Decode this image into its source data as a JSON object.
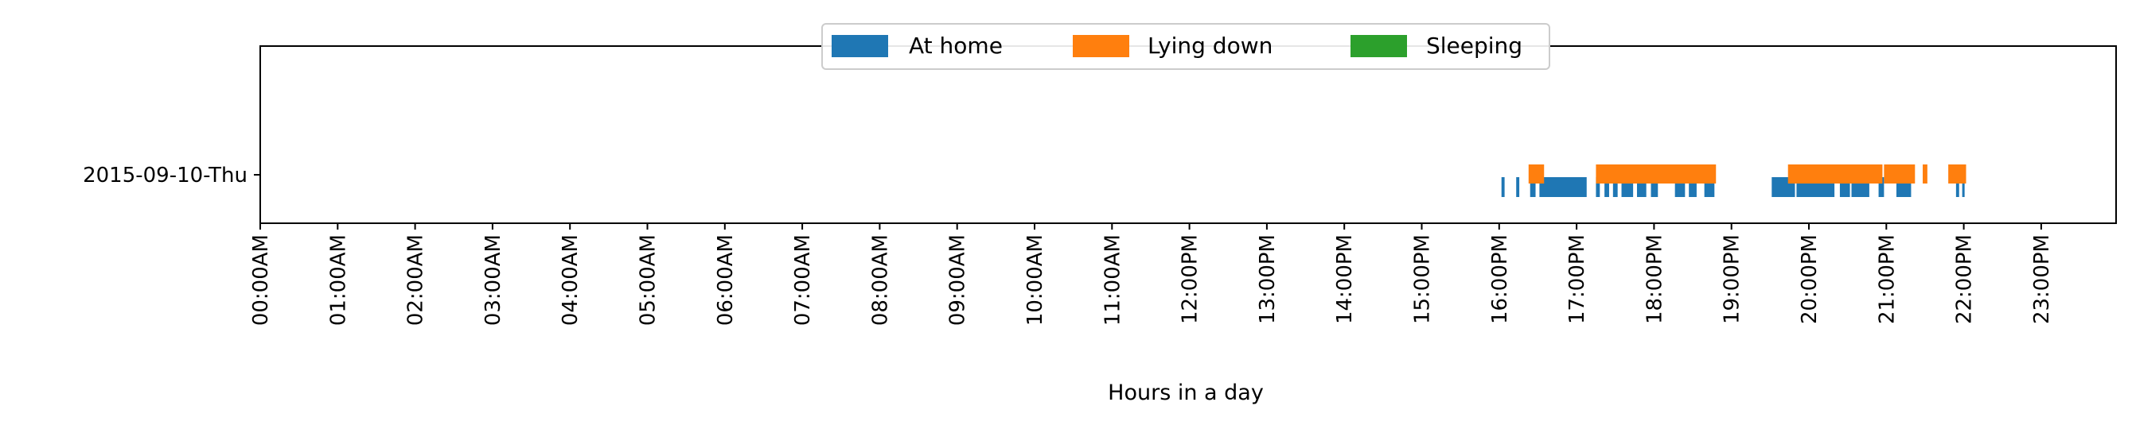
{
  "chart_data": {
    "type": "timeline",
    "title": "",
    "xlabel": "Hours in a day",
    "ylabel": "",
    "xlim_hours": [
      0,
      24
    ],
    "grid": false,
    "legend_placement": "top-center",
    "row_label": "2015-09-10-Thu",
    "x_tick_labels": [
      "00:00AM",
      "01:00AM",
      "02:00AM",
      "03:00AM",
      "04:00AM",
      "05:00AM",
      "06:00AM",
      "07:00AM",
      "08:00AM",
      "09:00AM",
      "10:00AM",
      "11:00AM",
      "12:00PM",
      "13:00PM",
      "14:00PM",
      "15:00PM",
      "16:00PM",
      "17:00PM",
      "18:00PM",
      "19:00PM",
      "20:00PM",
      "21:00PM",
      "22:00PM",
      "23:00PM"
    ],
    "series": [
      {
        "name": "At home",
        "color": "#1f77b4",
        "intervals_hours": [
          [
            16.03,
            16.07
          ],
          [
            16.22,
            16.26
          ],
          [
            16.4,
            16.47
          ],
          [
            16.52,
            17.13
          ],
          [
            17.25,
            17.3
          ],
          [
            17.36,
            17.42
          ],
          [
            17.47,
            17.53
          ],
          [
            17.58,
            17.73
          ],
          [
            17.78,
            17.9
          ],
          [
            17.96,
            18.05
          ],
          [
            18.27,
            18.4
          ],
          [
            18.45,
            18.55
          ],
          [
            18.65,
            18.78
          ],
          [
            19.52,
            19.82
          ],
          [
            19.84,
            20.33
          ],
          [
            20.4,
            20.53
          ],
          [
            20.55,
            20.78
          ],
          [
            20.9,
            20.97
          ],
          [
            21.13,
            21.32
          ],
          [
            21.9,
            21.94
          ],
          [
            21.98,
            22.01
          ]
        ]
      },
      {
        "name": "Lying down",
        "color": "#ff7f0e",
        "intervals_hours": [
          [
            16.38,
            16.58
          ],
          [
            17.25,
            18.8
          ],
          [
            19.73,
            20.95
          ],
          [
            20.97,
            21.37
          ],
          [
            21.47,
            21.53
          ],
          [
            21.8,
            22.03
          ]
        ]
      },
      {
        "name": "Sleeping",
        "color": "#2ca02c",
        "intervals_hours": []
      }
    ]
  }
}
